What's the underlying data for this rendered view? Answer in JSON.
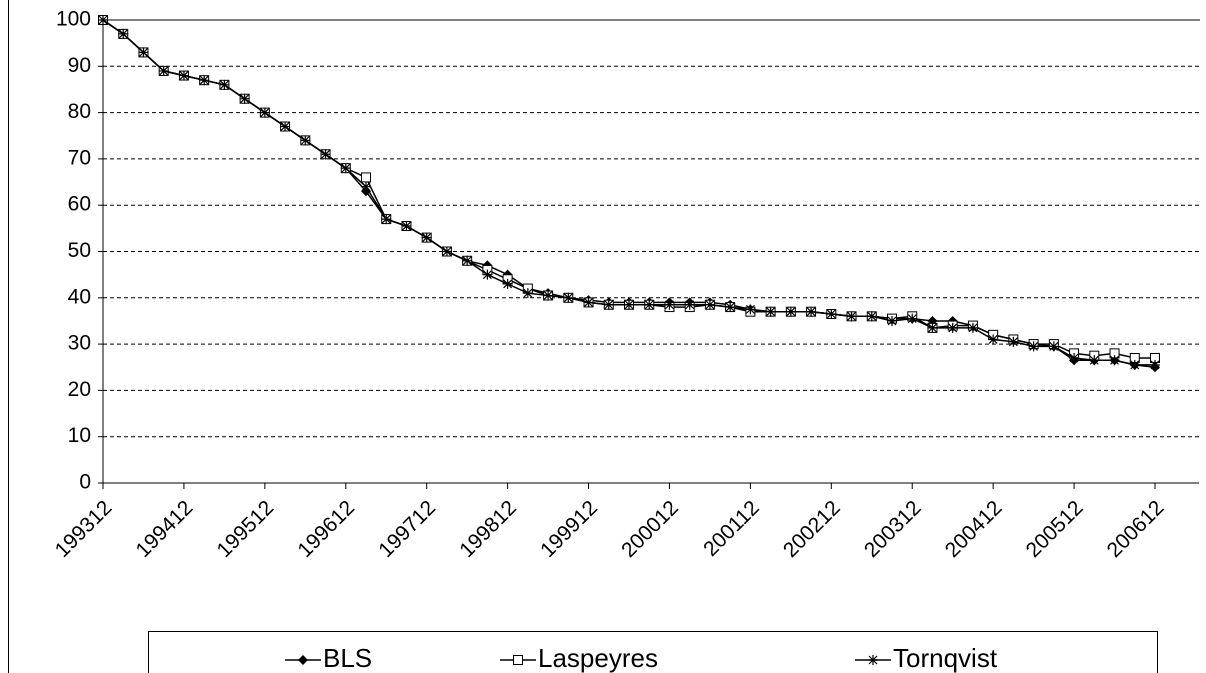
{
  "chart_data": {
    "type": "line",
    "categories": [
      "199312",
      null,
      null,
      null,
      "199412",
      null,
      null,
      null,
      "199512",
      null,
      null,
      null,
      "199612",
      null,
      null,
      null,
      "199712",
      null,
      null,
      null,
      "199812",
      null,
      null,
      null,
      "199912",
      null,
      null,
      null,
      "200012",
      null,
      null,
      null,
      "200112",
      null,
      null,
      null,
      "200212",
      null,
      null,
      null,
      "200312",
      null,
      null,
      null,
      "200412",
      null,
      null,
      null,
      "200512",
      null,
      null,
      null,
      "200612"
    ],
    "series": [
      {
        "name": "BLS",
        "color": "#000000",
        "marker": "diamond",
        "values": [
          100,
          97,
          93,
          89,
          88,
          87,
          86,
          83,
          80,
          77,
          74,
          71,
          68,
          63,
          57,
          55.5,
          53,
          50,
          48,
          47,
          45,
          42,
          41,
          40,
          39.5,
          39,
          39,
          39,
          39,
          39,
          39,
          38.5,
          37.5,
          37,
          37,
          37,
          36.5,
          36,
          36,
          35.5,
          35.5,
          35,
          35,
          34,
          32,
          31,
          30,
          29.5,
          26.5,
          26.5,
          26.5,
          25.5,
          25
        ]
      },
      {
        "name": "Laspeyres",
        "color": "#000000",
        "marker": "square",
        "values": [
          100,
          97,
          93,
          89,
          88,
          87,
          86,
          83,
          80,
          77,
          74,
          71,
          68,
          66,
          57,
          55.5,
          53,
          50,
          48,
          46,
          44,
          42,
          40.5,
          40,
          39,
          38.5,
          38.5,
          38.5,
          38,
          38,
          38.5,
          38,
          37,
          37,
          37,
          37,
          36.5,
          36,
          36,
          35.5,
          36,
          33.5,
          34,
          34,
          32,
          31,
          30,
          30,
          28,
          27.5,
          28,
          27,
          27
        ]
      },
      {
        "name": "Tornqvist",
        "color": "#000000",
        "marker": "star",
        "values": [
          100,
          97,
          93,
          89,
          88,
          87,
          86,
          83,
          80,
          77,
          74,
          71,
          68,
          64,
          57,
          55.5,
          53,
          50,
          48,
          45,
          43,
          41,
          40.5,
          40,
          39,
          38.5,
          38.5,
          38.5,
          38.5,
          38.5,
          38.5,
          38,
          37.5,
          37,
          37,
          37,
          36.5,
          36,
          36,
          35,
          35.5,
          33.5,
          33.5,
          33.5,
          31,
          30.5,
          29.5,
          29.5,
          27,
          26.5,
          26.5,
          25.5,
          25.5
        ]
      }
    ],
    "ylim": [
      0,
      100
    ],
    "yticks": [
      0,
      10,
      20,
      30,
      40,
      50,
      60,
      70,
      80,
      90,
      100
    ],
    "grid": true,
    "legend": "bottom"
  }
}
